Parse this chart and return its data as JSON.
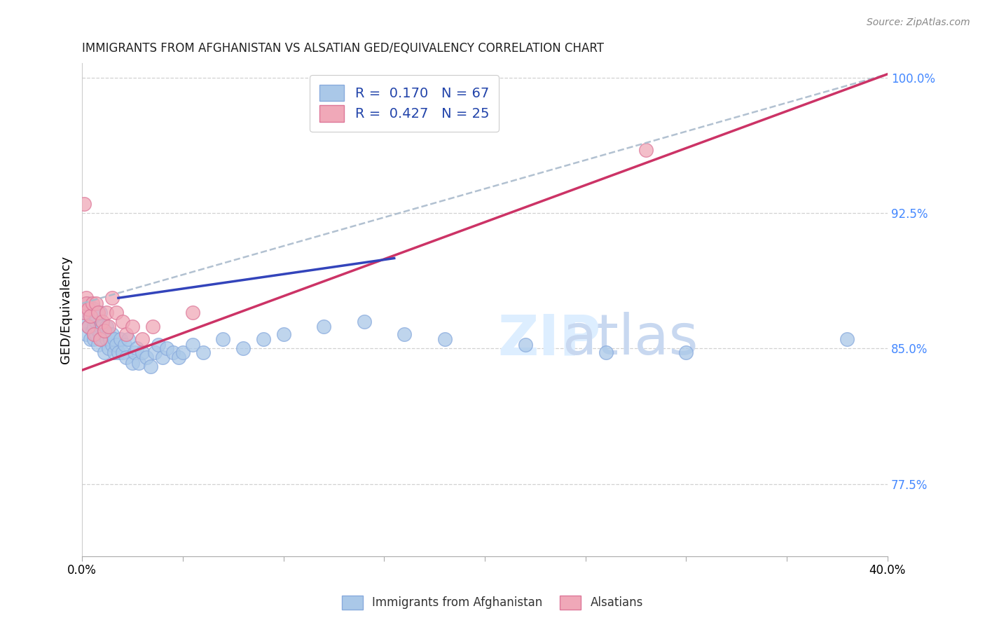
{
  "title": "IMMIGRANTS FROM AFGHANISTAN VS ALSATIAN GED/EQUIVALENCY CORRELATION CHART",
  "source": "Source: ZipAtlas.com",
  "xlabel": "",
  "ylabel": "GED/Equivalency",
  "xlim": [
    0.0,
    0.4
  ],
  "ylim": [
    0.735,
    1.008
  ],
  "xticks": [
    0.0,
    0.05,
    0.1,
    0.15,
    0.2,
    0.25,
    0.3,
    0.35,
    0.4
  ],
  "xtick_labels": [
    "0.0%",
    "",
    "",
    "",
    "",
    "",
    "",
    "",
    "40.0%"
  ],
  "yticks": [
    0.775,
    0.85,
    0.925,
    1.0
  ],
  "ytick_labels": [
    "77.5%",
    "85.0%",
    "92.5%",
    "100.0%"
  ],
  "R_blue": 0.17,
  "N_blue": 67,
  "R_pink": 0.427,
  "N_pink": 25,
  "blue_color": "#aac8e8",
  "pink_color": "#f0a8b8",
  "blue_edge": "#88aadd",
  "pink_edge": "#dd7799",
  "trend_blue": "#3344bb",
  "trend_pink": "#cc3366",
  "trend_dashed_color": "#aabbcc",
  "background": "#ffffff",
  "grid_color": "#cccccc",
  "blue_scatter_x": [
    0.001,
    0.002,
    0.002,
    0.003,
    0.003,
    0.004,
    0.004,
    0.005,
    0.005,
    0.006,
    0.006,
    0.006,
    0.007,
    0.007,
    0.008,
    0.008,
    0.009,
    0.009,
    0.009,
    0.01,
    0.01,
    0.011,
    0.011,
    0.012,
    0.012,
    0.013,
    0.013,
    0.014,
    0.015,
    0.015,
    0.016,
    0.016,
    0.017,
    0.018,
    0.019,
    0.02,
    0.021,
    0.022,
    0.023,
    0.025,
    0.026,
    0.027,
    0.028,
    0.03,
    0.032,
    0.034,
    0.036,
    0.038,
    0.04,
    0.042,
    0.045,
    0.048,
    0.05,
    0.055,
    0.06,
    0.07,
    0.08,
    0.09,
    0.1,
    0.12,
    0.14,
    0.16,
    0.18,
    0.22,
    0.26,
    0.3,
    0.38
  ],
  "blue_scatter_y": [
    0.87,
    0.865,
    0.858,
    0.875,
    0.862,
    0.868,
    0.855,
    0.86,
    0.87,
    0.855,
    0.862,
    0.872,
    0.858,
    0.865,
    0.852,
    0.86,
    0.858,
    0.862,
    0.87,
    0.855,
    0.862,
    0.858,
    0.848,
    0.855,
    0.862,
    0.858,
    0.85,
    0.855,
    0.852,
    0.858,
    0.848,
    0.855,
    0.852,
    0.848,
    0.855,
    0.848,
    0.852,
    0.845,
    0.855,
    0.842,
    0.848,
    0.85,
    0.842,
    0.848,
    0.845,
    0.84,
    0.848,
    0.852,
    0.845,
    0.85,
    0.848,
    0.845,
    0.848,
    0.852,
    0.848,
    0.855,
    0.85,
    0.855,
    0.858,
    0.862,
    0.865,
    0.858,
    0.855,
    0.852,
    0.848,
    0.848,
    0.855
  ],
  "pink_scatter_x": [
    0.001,
    0.001,
    0.002,
    0.002,
    0.003,
    0.003,
    0.004,
    0.005,
    0.006,
    0.007,
    0.008,
    0.009,
    0.01,
    0.011,
    0.012,
    0.013,
    0.015,
    0.017,
    0.02,
    0.022,
    0.025,
    0.03,
    0.035,
    0.055,
    0.28
  ],
  "pink_scatter_y": [
    0.93,
    0.87,
    0.878,
    0.875,
    0.872,
    0.862,
    0.868,
    0.875,
    0.858,
    0.875,
    0.87,
    0.855,
    0.865,
    0.86,
    0.87,
    0.862,
    0.878,
    0.87,
    0.865,
    0.858,
    0.862,
    0.855,
    0.862,
    0.87,
    0.96
  ],
  "trend_blue_x0": 0.018,
  "trend_blue_y0": 0.878,
  "trend_blue_x1": 0.155,
  "trend_blue_y1": 0.9,
  "trend_pink_x0": 0.0,
  "trend_pink_y0": 0.838,
  "trend_pink_x1": 0.4,
  "trend_pink_y1": 1.002,
  "trend_dashed_x0": 0.0,
  "trend_dashed_y0": 0.875,
  "trend_dashed_x1": 0.4,
  "trend_dashed_y1": 1.002,
  "marker_size": 200
}
